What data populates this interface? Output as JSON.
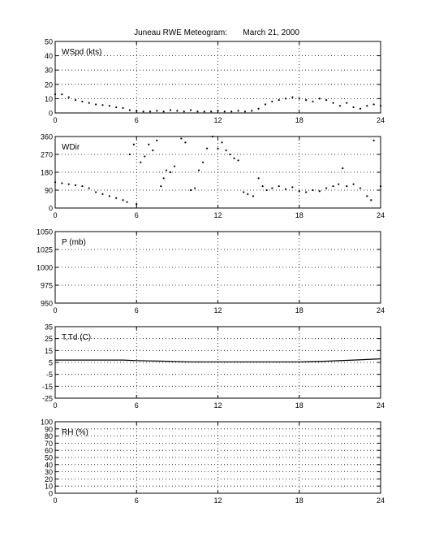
{
  "title": "Juneau RWE Meteogram:       March 21, 2000",
  "chart_data": [
    {
      "type": "scatter",
      "label": "WSpd (kts)",
      "xlim": [
        0,
        24
      ],
      "ylim": [
        0,
        50
      ],
      "xticks": [
        "0",
        "6",
        "12",
        "18",
        "24"
      ],
      "yticks": [
        "0",
        "10",
        "20",
        "30",
        "40",
        "50"
      ],
      "grid": true,
      "series": [
        {
          "x": [
            0,
            0.5,
            1,
            1.5,
            2,
            2.5,
            3,
            3.5,
            4,
            4.5,
            5,
            5.5,
            6,
            6.5,
            7,
            7.5,
            8,
            8.5,
            9,
            9.5,
            10,
            10.5,
            11,
            11.5,
            12,
            12.5,
            13,
            13.5,
            14,
            14.5,
            15,
            15.5,
            16,
            16.5,
            17,
            17.5,
            18,
            18.5,
            19,
            19.5,
            20,
            20.5,
            21,
            21.5,
            22,
            22.5,
            23,
            23.5,
            24
          ],
          "y": [
            13,
            13,
            11,
            9,
            8,
            7,
            6,
            5.5,
            5,
            4,
            3.5,
            2,
            1.5,
            1,
            1,
            1.5,
            1,
            2,
            1.5,
            1,
            2,
            1,
            1,
            1,
            1.5,
            1,
            1,
            1.5,
            1,
            1.5,
            3,
            6,
            8,
            9,
            10,
            11,
            10,
            9,
            8,
            10,
            9,
            7,
            5,
            7,
            4,
            3,
            5,
            6,
            5
          ]
        }
      ]
    },
    {
      "type": "scatter",
      "label": "WDir",
      "xlim": [
        0,
        24
      ],
      "ylim": [
        0,
        360
      ],
      "xticks": [
        "0",
        "6",
        "12",
        "18",
        "24"
      ],
      "yticks": [
        "0",
        "90",
        "180",
        "270",
        "360"
      ],
      "grid": true,
      "series": [
        {
          "x": [
            0,
            0.5,
            1,
            1.5,
            2,
            2.5,
            3,
            3.5,
            4,
            4.5,
            5,
            5.3,
            5.5,
            5.8,
            6,
            6.3,
            6.6,
            6.9,
            7.2,
            7.5,
            7.8,
            8,
            8.2,
            8.5,
            8.8,
            9.3,
            9.6,
            10,
            10.3,
            10.6,
            10.9,
            11.2,
            11.6,
            12,
            12.3,
            12.6,
            12.9,
            13.2,
            13.5,
            13.9,
            14.2,
            14.6,
            15,
            15.3,
            15.6,
            16,
            16.5,
            17,
            17.5,
            18,
            18.5,
            19,
            19.5,
            20,
            20.5,
            20.9,
            21.2,
            21.5,
            22,
            22.5,
            23,
            23.3,
            23.5,
            24
          ],
          "y": [
            130,
            125,
            120,
            115,
            110,
            100,
            80,
            70,
            60,
            50,
            40,
            30,
            270,
            320,
            20,
            230,
            260,
            320,
            290,
            340,
            110,
            150,
            190,
            180,
            210,
            350,
            330,
            90,
            100,
            190,
            230,
            300,
            360,
            300,
            330,
            290,
            270,
            250,
            240,
            80,
            70,
            60,
            150,
            110,
            90,
            100,
            110,
            95,
            105,
            85,
            80,
            90,
            85,
            100,
            110,
            120,
            200,
            110,
            120,
            100,
            60,
            40,
            340,
            110
          ]
        }
      ]
    },
    {
      "type": "scatter",
      "label": "P (mb)",
      "xlim": [
        0,
        24
      ],
      "ylim": [
        950,
        1050
      ],
      "xticks": [
        "0",
        "6",
        "12",
        "18",
        "24"
      ],
      "yticks": [
        "950",
        "975",
        "1000",
        "1025",
        "1050"
      ],
      "grid": true,
      "series": []
    },
    {
      "type": "line",
      "label": "T,Td (C)",
      "xlim": [
        0,
        24
      ],
      "ylim": [
        -25,
        35
      ],
      "xticks": [
        "0",
        "6",
        "12",
        "18",
        "24"
      ],
      "yticks": [
        "-25",
        "-15",
        "-5",
        "5",
        "15",
        "25",
        "35"
      ],
      "grid": true,
      "series": [
        {
          "x": [
            0,
            2,
            4,
            5,
            6,
            8,
            10,
            12,
            14,
            16,
            18,
            20,
            22,
            24
          ],
          "y": [
            7,
            7,
            7,
            7,
            6.5,
            6,
            5.5,
            5.5,
            5.5,
            5.5,
            5.5,
            6,
            7,
            8
          ]
        }
      ]
    },
    {
      "type": "scatter",
      "label": "RH (%)",
      "xlim": [
        0,
        24
      ],
      "ylim": [
        0,
        100
      ],
      "xticks": [
        "0",
        "6",
        "12",
        "18",
        "24"
      ],
      "yticks": [
        "0",
        "10",
        "20",
        "30",
        "40",
        "50",
        "60",
        "70",
        "80",
        "90",
        "100"
      ],
      "grid": true,
      "series": []
    }
  ]
}
